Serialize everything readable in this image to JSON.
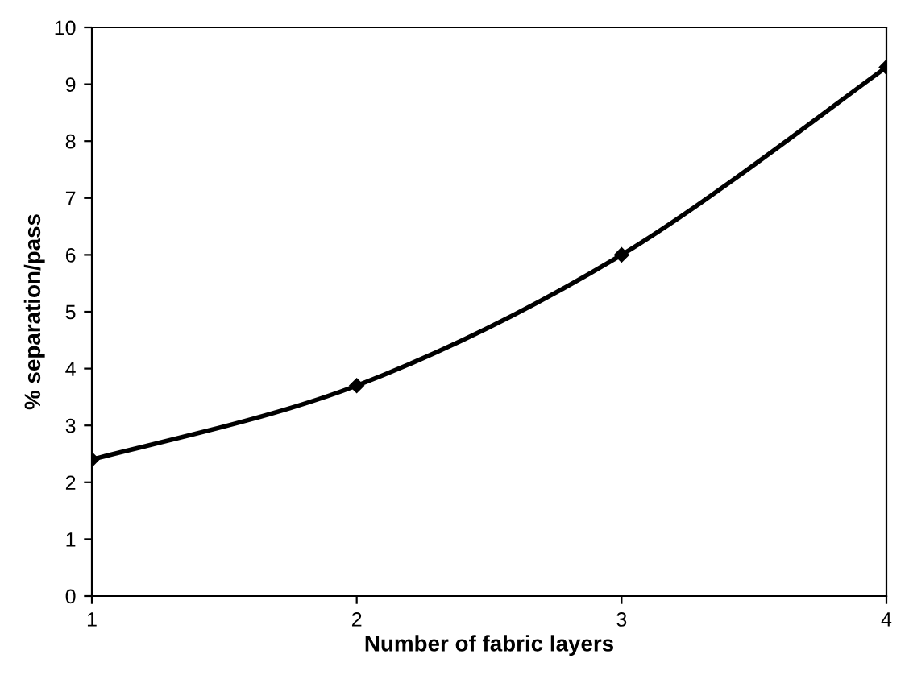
{
  "chart_data": {
    "type": "line",
    "xlabel": "Number of fabric layers",
    "ylabel": "% separation/pass",
    "x": [
      1,
      2,
      3,
      4
    ],
    "series": [
      {
        "color": "#000000",
        "values": [
          2.4,
          3.7,
          6.0,
          9.3
        ]
      }
    ],
    "xlim": [
      1,
      4
    ],
    "xticks": [
      1,
      2,
      3,
      4
    ],
    "ylim": [
      0,
      10
    ],
    "yticks": [
      0,
      1,
      2,
      3,
      4,
      5,
      6,
      7,
      8,
      9,
      10
    ],
    "marker": "diamond",
    "line_style": "solid",
    "grid": false,
    "legend": false
  }
}
